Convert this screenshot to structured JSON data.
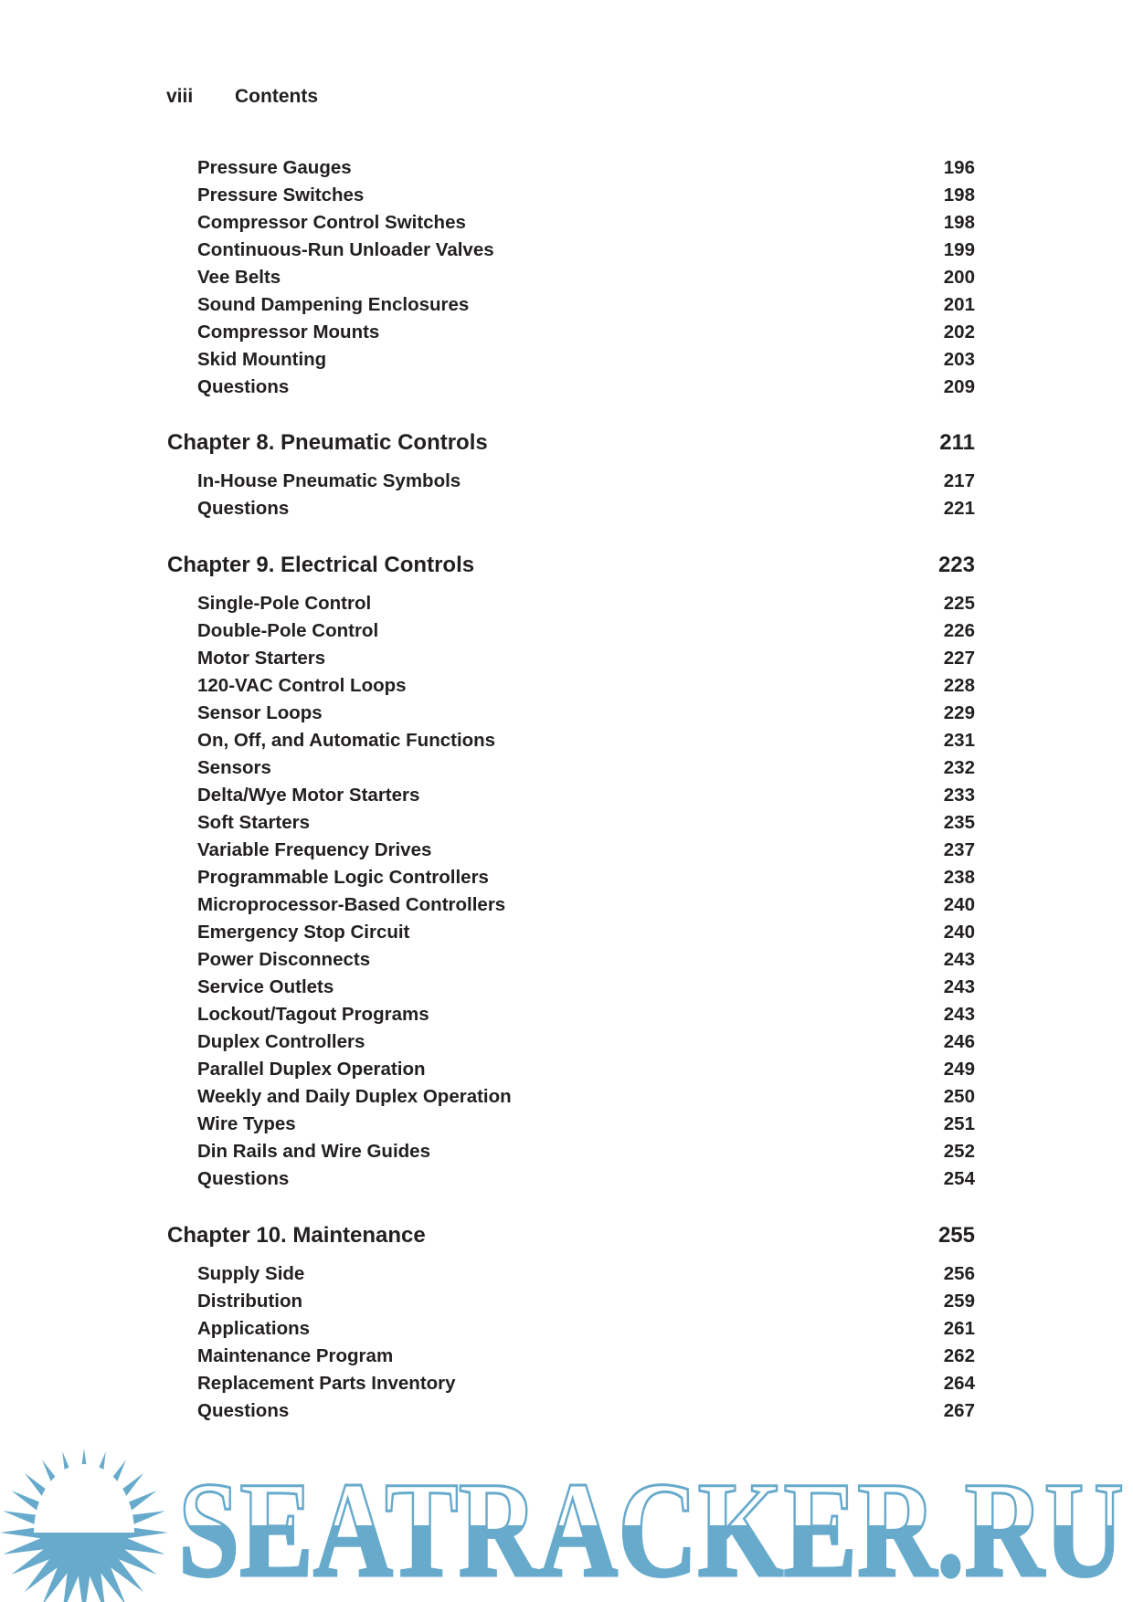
{
  "header": {
    "page_number": "viii",
    "title": "Contents"
  },
  "sections": [
    {
      "chapter": null,
      "entries": [
        {
          "title": "Pressure Gauges",
          "page": "196"
        },
        {
          "title": "Pressure Switches",
          "page": "198"
        },
        {
          "title": "Compressor Control Switches",
          "page": "198"
        },
        {
          "title": "Continuous-Run Unloader Valves",
          "page": "199"
        },
        {
          "title": "Vee Belts",
          "page": "200"
        },
        {
          "title": "Sound Dampening Enclosures",
          "page": "201"
        },
        {
          "title": "Compressor Mounts",
          "page": "202"
        },
        {
          "title": "Skid Mounting",
          "page": "203"
        },
        {
          "title": "Questions",
          "page": "209"
        }
      ]
    },
    {
      "chapter": {
        "title": "Chapter 8.  Pneumatic Controls",
        "page": "211"
      },
      "entries": [
        {
          "title": "In-House Pneumatic Symbols",
          "page": "217"
        },
        {
          "title": "Questions",
          "page": "221"
        }
      ]
    },
    {
      "chapter": {
        "title": "Chapter 9.  Electrical Controls",
        "page": "223"
      },
      "entries": [
        {
          "title": "Single-Pole Control",
          "page": "225"
        },
        {
          "title": "Double-Pole Control",
          "page": "226"
        },
        {
          "title": "Motor Starters",
          "page": "227"
        },
        {
          "title": "120-VAC Control Loops",
          "page": "228"
        },
        {
          "title": "Sensor Loops",
          "page": "229"
        },
        {
          "title": "On, Off, and Automatic Functions",
          "page": "231"
        },
        {
          "title": "Sensors",
          "page": "232"
        },
        {
          "title": "Delta/Wye Motor Starters",
          "page": "233"
        },
        {
          "title": "Soft Starters",
          "page": "235"
        },
        {
          "title": "Variable Frequency Drives",
          "page": "237"
        },
        {
          "title": "Programmable Logic Controllers",
          "page": "238"
        },
        {
          "title": "Microprocessor-Based Controllers",
          "page": "240"
        },
        {
          "title": "Emergency Stop Circuit",
          "page": "240"
        },
        {
          "title": "Power Disconnects",
          "page": "243"
        },
        {
          "title": "Service Outlets",
          "page": "243"
        },
        {
          "title": "Lockout/Tagout Programs",
          "page": "243"
        },
        {
          "title": "Duplex Controllers",
          "page": "246"
        },
        {
          "title": "Parallel Duplex Operation",
          "page": "249"
        },
        {
          "title": "Weekly and Daily Duplex Operation",
          "page": "250"
        },
        {
          "title": "Wire Types",
          "page": "251"
        },
        {
          "title": "Din Rails and Wire Guides",
          "page": "252"
        },
        {
          "title": "Questions",
          "page": "254"
        }
      ]
    },
    {
      "chapter": {
        "title": "Chapter 10.  Maintenance",
        "page": "255"
      },
      "entries": [
        {
          "title": "Supply Side",
          "page": "256"
        },
        {
          "title": "Distribution",
          "page": "259"
        },
        {
          "title": "Applications",
          "page": "261"
        },
        {
          "title": "Maintenance Program",
          "page": "262"
        },
        {
          "title": "Replacement Parts Inventory",
          "page": "264"
        },
        {
          "title": "Questions",
          "page": "267"
        }
      ]
    }
  ],
  "watermark": {
    "text": "SEATRACKER.RU",
    "icon": "sun-icon",
    "color": "#67aacb"
  }
}
